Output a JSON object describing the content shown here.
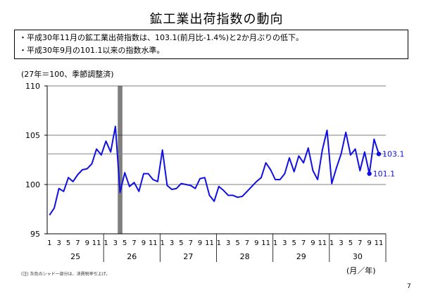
{
  "title": "鉱工業出荷指数の動向",
  "notes": [
    "・平成30年11月の鉱工業出荷指数は、103.1(前月比-1.4%)と2か月ぶりの低下。",
    "・平成30年9月の101.1以来の指数水準。"
  ],
  "footnote": "(注) 灰色のシャド一部分は、消費税率引上げ。",
  "unit_label": "(月／年)",
  "page_number": "7",
  "colors": {
    "line": "#1010e0",
    "shade": "#7f7f7f",
    "reference": "#888888"
  },
  "chart_data": {
    "type": "line",
    "ylabel": "(27年＝100、季節調整済)",
    "ylim": [
      95,
      110
    ],
    "yticks": [
      95,
      100,
      105,
      110
    ],
    "month_ticks": [
      "1",
      "3",
      "5",
      "7",
      "9",
      "11"
    ],
    "year_labels": [
      "25",
      "26",
      "27",
      "28",
      "29",
      "30"
    ],
    "values": [
      96.9,
      97.6,
      99.6,
      99.3,
      100.7,
      100.3,
      101.0,
      101.5,
      101.6,
      102.1,
      103.6,
      103.0,
      104.4,
      103.3,
      105.9,
      99.2,
      101.2,
      99.8,
      100.2,
      99.3,
      101.1,
      101.1,
      100.5,
      100.3,
      103.5,
      99.9,
      99.5,
      99.6,
      100.1,
      100.0,
      99.9,
      99.6,
      100.6,
      100.7,
      98.9,
      98.3,
      99.8,
      99.4,
      98.9,
      98.9,
      98.7,
      98.8,
      99.3,
      99.8,
      100.3,
      100.7,
      102.2,
      101.5,
      100.5,
      100.5,
      101.1,
      102.7,
      101.3,
      102.9,
      102.2,
      103.7,
      101.4,
      100.5,
      103.5,
      105.5,
      100.1,
      101.7,
      103.1,
      105.3,
      103.0,
      103.6,
      101.4,
      103.3,
      101.1,
      104.6,
      103.1
    ],
    "reference_line": 103.1,
    "shaded_months": [
      15
    ],
    "annotations": [
      {
        "label": "103.1",
        "index": 70
      },
      {
        "label": "101.1",
        "index": 68
      }
    ]
  }
}
